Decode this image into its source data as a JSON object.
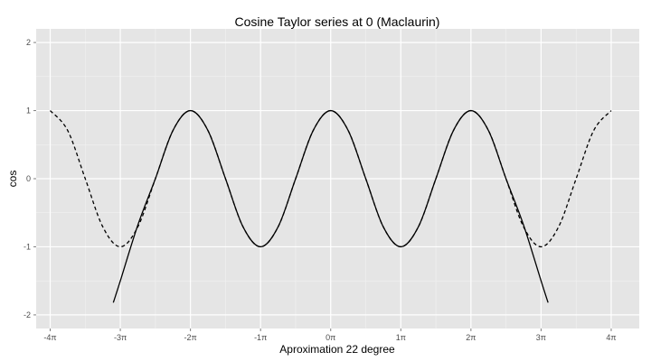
{
  "chart_data": {
    "type": "line",
    "title": "Cosine Taylor series at 0 (Maclaurin)",
    "xlabel": "Aproximation  22 degree",
    "ylabel": "cos",
    "x_unit": "π",
    "xlim": [
      -4.2,
      4.4
    ],
    "ylim": [
      -2.2,
      2.2
    ],
    "x_ticks": [
      {
        "value": -4,
        "label": "-4π"
      },
      {
        "value": -3,
        "label": "-3π"
      },
      {
        "value": -2,
        "label": "-2π"
      },
      {
        "value": -1,
        "label": "-1π"
      },
      {
        "value": 0,
        "label": "0π"
      },
      {
        "value": 1,
        "label": "1π"
      },
      {
        "value": 2,
        "label": "2π"
      },
      {
        "value": 3,
        "label": "3π"
      },
      {
        "value": 4,
        "label": "4π"
      }
    ],
    "y_ticks": [
      {
        "value": 2,
        "label": "2"
      },
      {
        "value": 1,
        "label": "1"
      },
      {
        "value": 0,
        "label": "0"
      },
      {
        "value": -1,
        "label": "-1"
      },
      {
        "value": -2,
        "label": "-2"
      }
    ],
    "grid": true,
    "series": [
      {
        "style": "dashed",
        "color": "#000000",
        "x": [
          -4,
          -3.75,
          -3.5,
          -3.25,
          -3,
          -2.75,
          -2.5,
          -2.25,
          -2,
          -1.75,
          -1.5,
          -1.25,
          -1,
          -0.75,
          -0.5,
          -0.25,
          0,
          0.25,
          0.5,
          0.75,
          1,
          1.25,
          1.5,
          1.75,
          2,
          2.25,
          2.5,
          2.75,
          3,
          3.25,
          3.5,
          3.75,
          4
        ],
        "y": [
          1,
          0.707,
          0,
          -0.707,
          -1,
          -0.707,
          0,
          0.707,
          1,
          0.707,
          0,
          -0.707,
          -1,
          -0.707,
          0,
          0.707,
          1,
          0.707,
          0,
          -0.707,
          -1,
          -0.707,
          0,
          0.707,
          1,
          0.707,
          0,
          -0.707,
          -1,
          -0.707,
          0,
          0.707,
          1
        ]
      },
      {
        "style": "solid",
        "color": "#000000",
        "x": [
          -3.1,
          -3.0,
          -2.75,
          -2.5,
          -2.25,
          -2,
          -1.75,
          -1.5,
          -1.25,
          -1,
          -0.75,
          -0.5,
          -0.25,
          0,
          0.25,
          0.5,
          0.75,
          1,
          1.25,
          1.5,
          1.75,
          2,
          2.25,
          2.5,
          2.75,
          3.0,
          3.1
        ],
        "y": [
          -1.82,
          -1.5,
          -0.68,
          0,
          0.707,
          1,
          0.707,
          0,
          -0.707,
          -1,
          -0.707,
          0,
          0.707,
          1,
          0.707,
          0,
          -0.707,
          -1,
          -0.707,
          0,
          0.707,
          1,
          0.707,
          0,
          -0.68,
          -1.5,
          -1.82
        ]
      }
    ]
  }
}
